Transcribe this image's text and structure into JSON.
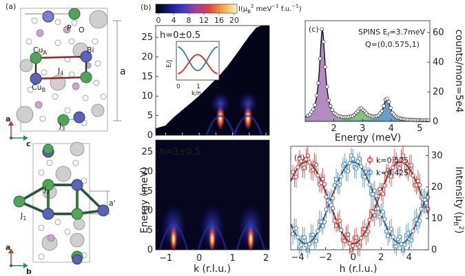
{
  "panel_labels": {
    "a": "(a)",
    "b": "(b)",
    "c": "(c)",
    "d": "(d)"
  },
  "structure": {
    "atom_labels": {
      "cu_a": "Cu",
      "cu_a_sub": "A",
      "cu_b": "Cu",
      "cu_b_sub": "B",
      "bi": "Bi",
      "p": "P",
      "o": "O"
    },
    "couplings": {
      "j1": "J",
      "j1_sub": "1",
      "j2": "J",
      "j2_sub": "2",
      "j3": "J",
      "j3_sub": "3",
      "j4": "J",
      "j4_sub": "4"
    },
    "lattice": {
      "a": "a",
      "a_prime": "a'"
    },
    "axes_top": {
      "vertical": "a",
      "horizontal": "c"
    },
    "axes_bottom": {
      "vertical": "a",
      "horizontal": "b"
    },
    "colors": {
      "cu_a": "#4da65a",
      "cu_b": "#5a63b8",
      "bi": "#c8c8c8",
      "p": "#c6a9c9",
      "o": "#ffffff",
      "bond": "#9b1f2a"
    }
  },
  "colorbar": {
    "ticks": [
      "0",
      "4",
      "8",
      "12",
      "16",
      "20"
    ],
    "unit_label": "I(μ",
    "unit_sub": "B",
    "unit_sup": "2",
    "unit_rest": " meV",
    "unit_sup2": "−1",
    "unit_end": " f.u.",
    "unit_sup3": "−1",
    "unit_close": ")"
  },
  "chart_data": [
    {
      "type": "heatmap",
      "panel": "b-top",
      "annotation": "h=0±0.5",
      "ylabel": "Energy (meV)",
      "yticks": [
        0,
        5,
        10,
        15,
        20,
        25
      ],
      "ylim": [
        0,
        28
      ],
      "xlim": [
        -1.3,
        2.1
      ]
    },
    {
      "type": "heatmap",
      "panel": "b-bottom",
      "annotation": "h=3±0.5",
      "xlabel": "k (r.l.u.)",
      "xticks": [
        -1,
        -0.5,
        0,
        0.5,
        1,
        1.5,
        2
      ],
      "xtick_labels": [
        "−1",
        "",
        "0",
        "",
        "1",
        "",
        "2"
      ],
      "ylabel": "Energy (meV)",
      "yticks": [
        0,
        5,
        10,
        15,
        20,
        25
      ],
      "ylim": [
        0,
        28
      ],
      "xlim": [
        -1.3,
        2.1
      ]
    },
    {
      "type": "line",
      "panel": "b-inset",
      "ylabel": "E/J",
      "xlabel": "k/π",
      "xticks": [
        0,
        1,
        2
      ],
      "xlim": [
        0,
        2
      ],
      "series": [
        {
          "name": "upper branch",
          "color": "#2f78b7"
        },
        {
          "name": "lower branch",
          "color": "#d02a2a"
        }
      ]
    },
    {
      "type": "line",
      "panel": "c",
      "title_lines": [
        "SPINS E",
        "f",
        "=3.7meV",
        "Q=(0,0.575,1)"
      ],
      "xlabel": "Energy (meV)",
      "ylabel": "counts/mon=5e4",
      "xticks": [
        2,
        3,
        4,
        5
      ],
      "xlim": [
        1.0,
        5.35
      ],
      "yticks": [
        0,
        20,
        40,
        60
      ],
      "ylim": [
        0,
        68
      ],
      "peaks": [
        {
          "center": 1.6,
          "amplitude": 61,
          "width": 0.12,
          "color": "#a577b8"
        },
        {
          "center": 2.95,
          "amplitude": 7.5,
          "width": 0.2,
          "color": "#70b865"
        },
        {
          "center": 3.85,
          "amplitude": 15,
          "width": 0.14,
          "color": "#4f8cc4"
        }
      ]
    },
    {
      "type": "scatter",
      "panel": "d",
      "xlabel": "h (r.l.u.)",
      "ylabel": "Intensity (μ",
      "ylabel_sub": "B",
      "ylabel_sup": "2",
      "ylabel_end": ")",
      "xticks": [
        -4,
        -2,
        0,
        2,
        4
      ],
      "xtick_labels": [
        "−4",
        "−2",
        "0",
        "2",
        "4"
      ],
      "xlim": [
        -4.5,
        5.4
      ],
      "yticks": [
        0,
        10,
        20,
        30
      ],
      "ylim": [
        0,
        33
      ],
      "series": [
        {
          "name": "k=0.575",
          "color": "#d62f2f",
          "fit": "sin2",
          "amplitude": 26,
          "period": 6.8,
          "phase": 0.0
        },
        {
          "name": "k=0.425",
          "color": "#3f83c0",
          "fit": "cos2",
          "amplitude": 26,
          "period": 6.8,
          "phase": 0.0
        }
      ]
    }
  ]
}
